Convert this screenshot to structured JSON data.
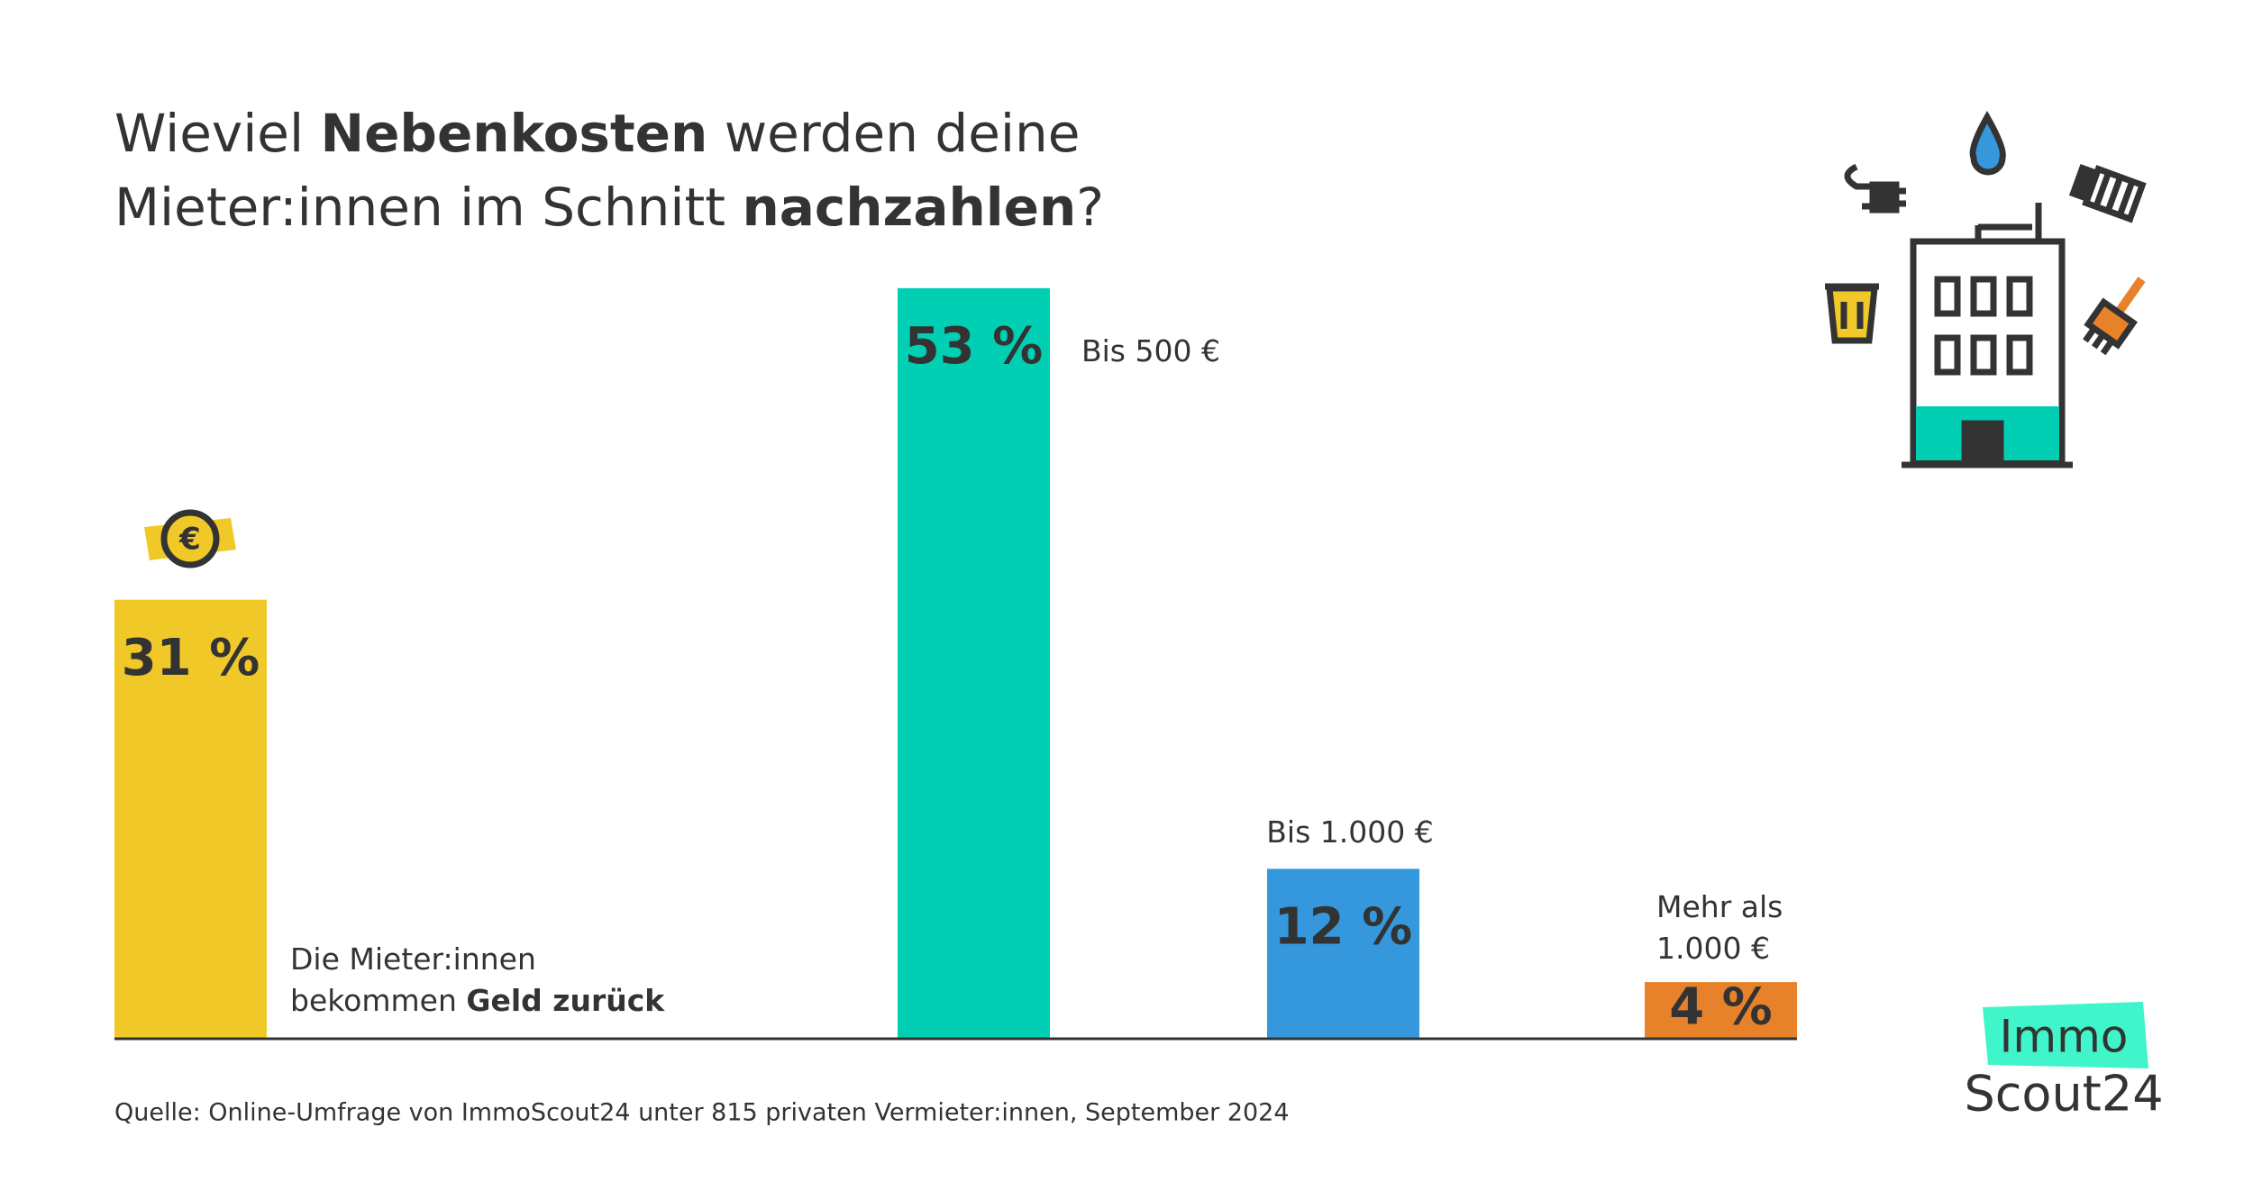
{
  "chart_data": {
    "type": "bar",
    "title": [
      [
        {
          "text": "Wieviel ",
          "bold": false
        },
        {
          "text": "Nebenkosten",
          "bold": true
        },
        {
          "text": " werden deine",
          "bold": false
        }
      ],
      [
        {
          "text": "Mieter:innen im Schnitt ",
          "bold": false
        },
        {
          "text": "nachzahlen",
          "bold": true
        },
        {
          "text": "?",
          "bold": false
        }
      ]
    ],
    "categories": [
      [
        [
          {
            "text": "Die Mieter:innen",
            "bold": false
          }
        ],
        [
          {
            "text": "bekommen ",
            "bold": false
          },
          {
            "text": "Geld zurück",
            "bold": true
          }
        ]
      ],
      [
        [
          {
            "text": "Bis 500 €",
            "bold": false
          }
        ]
      ],
      [
        [
          {
            "text": "Bis 1.000 €",
            "bold": false
          }
        ]
      ],
      [
        [
          {
            "text": "Mehr als",
            "bold": false
          }
        ],
        [
          {
            "text": "1.000 €",
            "bold": false
          }
        ]
      ]
    ],
    "values": [
      31,
      53,
      12,
      4
    ],
    "value_labels": [
      "31 %",
      "53 %",
      "12 %",
      "4 %"
    ],
    "colors": [
      "#f0c929",
      "#00cfb4",
      "#3598dc",
      "#e8822a"
    ],
    "source": "Quelle: Online-Umfrage von ImmoScout24 unter 815 privaten Vermieter:innen, September 2024",
    "logo": [
      "Immo",
      "Scout24"
    ]
  }
}
